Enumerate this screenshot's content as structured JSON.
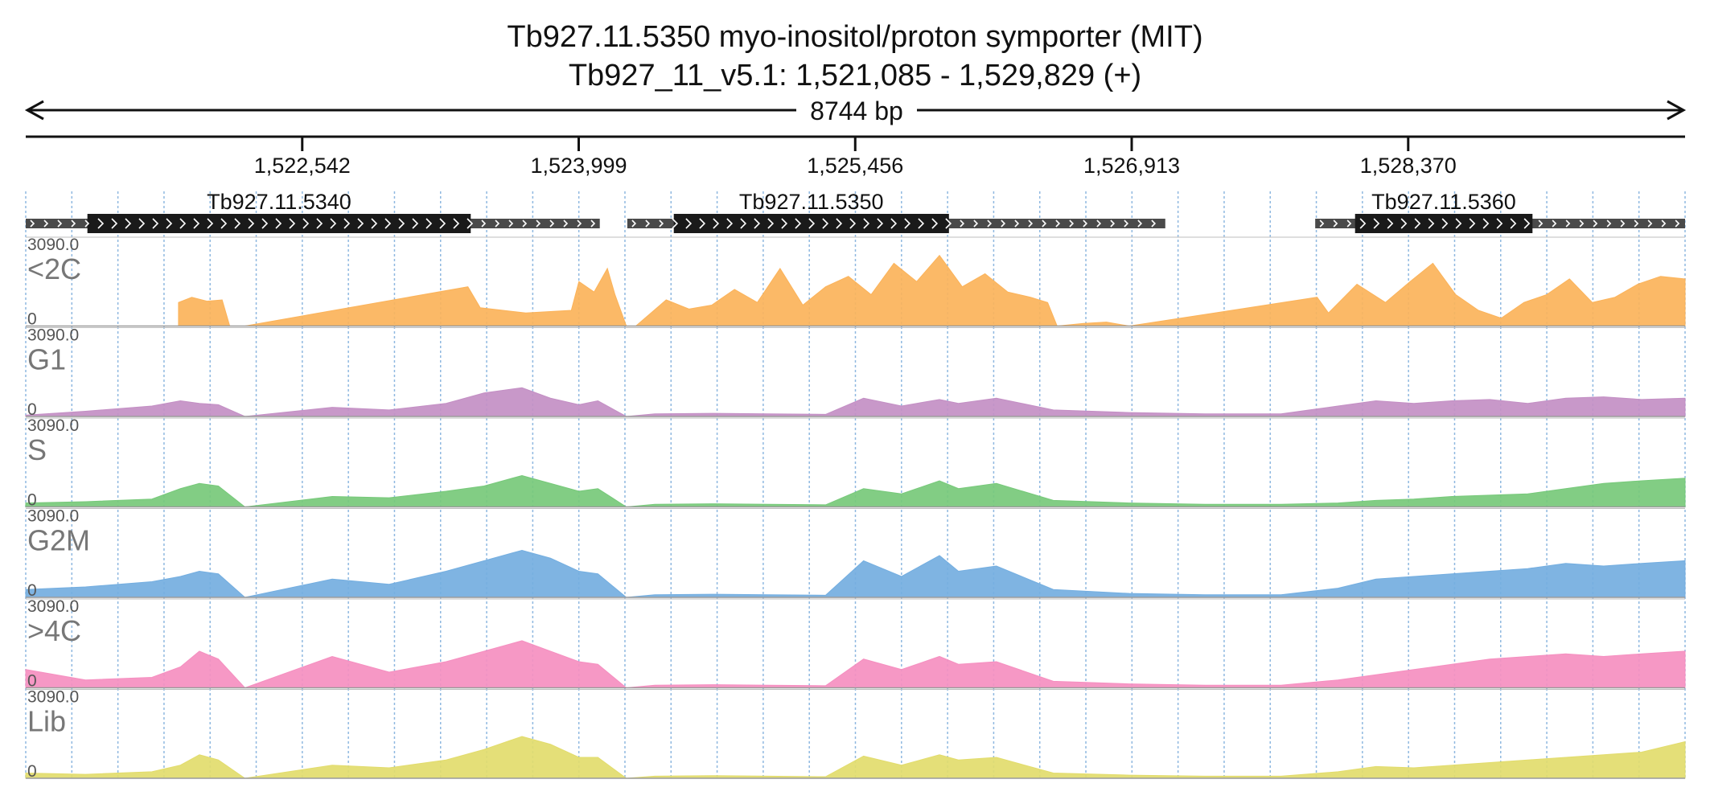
{
  "header": {
    "title": "Tb927.11.5350  myo-inositol/proton symporter (MIT)",
    "subtitle": "Tb927_11_v5.1: 1,521,085 - 1,529,829 (+)",
    "span_label": "8744 bp"
  },
  "colors": {
    "<2C": "#fbb35a",
    "G1": "#c38fc4",
    "S": "#77c97a",
    "G2M": "#74aee0",
    ">4C": "#f58fc0",
    "Lib": "#e2dc6c",
    "gene_body": "#1a1a1a",
    "gene_utr": "#4a4a4a",
    "gridline": "#8fb8e0"
  },
  "chart_data": {
    "type": "area",
    "x_range": [
      1521085,
      1529829
    ],
    "x_ticks": [
      {
        "pos": 1522542,
        "label": "1,522,542"
      },
      {
        "pos": 1523999,
        "label": "1,523,999"
      },
      {
        "pos": 1525456,
        "label": "1,525,456"
      },
      {
        "pos": 1526913,
        "label": "1,526,913"
      },
      {
        "pos": 1528370,
        "label": "1,528,370"
      }
    ],
    "genes": [
      {
        "name": "Tb927.11.5340",
        "start": 1521085,
        "end": 1524110,
        "cds_start": 1521410,
        "cds_end": 1523430
      },
      {
        "name": "Tb927.11.5350",
        "start": 1524255,
        "end": 1527090,
        "cds_start": 1524500,
        "cds_end": 1525950
      },
      {
        "name": "Tb927.11.5360",
        "start": 1527880,
        "end": 1529829,
        "cds_start": 1528090,
        "cds_end": 1529025
      }
    ],
    "tracks": [
      {
        "name": "<2C",
        "ymax_label": "3090.0",
        "ymin_label": "0",
        "ylim": [
          0,
          3090
        ],
        "x": [
          1521890,
          1521960,
          1522040,
          1522120,
          1522160,
          1522240,
          1523415,
          1523480,
          1523600,
          1523720,
          1523840,
          1523960,
          1524000,
          1524080,
          1524150,
          1524190,
          1524250,
          1524300,
          1524460,
          1524580,
          1524700,
          1524820,
          1524940,
          1525060,
          1525180,
          1525300,
          1525420,
          1525540,
          1525660,
          1525780,
          1525900,
          1526020,
          1526140,
          1526260,
          1526380,
          1526470,
          1526520,
          1526660,
          1526780,
          1526900,
          1527890,
          1527950,
          1528100,
          1528250,
          1528380,
          1528500,
          1528620,
          1528740,
          1528860,
          1528980,
          1529100,
          1529220,
          1529340,
          1529460,
          1529580,
          1529700,
          1529829
        ],
        "values": [
          900,
          1100,
          950,
          1000,
          0,
          0,
          1500,
          700,
          600,
          500,
          550,
          600,
          1700,
          1300,
          2200,
          1200,
          0,
          0,
          1000,
          650,
          800,
          1400,
          900,
          2200,
          800,
          1500,
          1900,
          1200,
          2400,
          1700,
          2700,
          1500,
          2000,
          1300,
          1100,
          900,
          0,
          100,
          150,
          0,
          1100,
          500,
          1600,
          900,
          1700,
          2400,
          1200,
          600,
          300,
          900,
          1200,
          1800,
          900,
          1100,
          1600,
          1900,
          1800
        ]
      },
      {
        "name": "G1",
        "ymax_label": "3090.0",
        "ymin_label": "0",
        "ylim": [
          0,
          3090
        ],
        "x": [
          1521085,
          1521400,
          1521750,
          1521900,
          1522000,
          1522100,
          1522240,
          1522700,
          1523000,
          1523300,
          1523500,
          1523700,
          1523850,
          1524000,
          1524100,
          1524250,
          1524400,
          1524700,
          1525000,
          1525300,
          1525500,
          1525700,
          1525900,
          1526000,
          1526200,
          1526500,
          1526900,
          1527300,
          1527700,
          1528000,
          1528200,
          1528400,
          1528600,
          1528800,
          1529000,
          1529200,
          1529400,
          1529600,
          1529829
        ],
        "values": [
          50,
          200,
          400,
          600,
          500,
          450,
          0,
          350,
          250,
          500,
          900,
          1100,
          700,
          450,
          600,
          0,
          100,
          120,
          100,
          80,
          700,
          400,
          650,
          500,
          700,
          250,
          150,
          100,
          100,
          400,
          600,
          500,
          600,
          650,
          500,
          700,
          750,
          650,
          700
        ]
      },
      {
        "name": "S",
        "ymax_label": "3090.0",
        "ymin_label": "0",
        "ylim": [
          0,
          3090
        ],
        "x": [
          1521085,
          1521400,
          1521750,
          1521900,
          1522000,
          1522100,
          1522240,
          1522700,
          1523000,
          1523300,
          1523500,
          1523700,
          1523850,
          1524000,
          1524100,
          1524250,
          1524400,
          1524700,
          1525000,
          1525300,
          1525500,
          1525700,
          1525900,
          1526000,
          1526200,
          1526500,
          1526900,
          1527300,
          1527700,
          1528000,
          1528200,
          1528400,
          1528600,
          1528800,
          1529000,
          1529200,
          1529400,
          1529600,
          1529829
        ],
        "values": [
          150,
          200,
          300,
          700,
          900,
          800,
          0,
          400,
          350,
          600,
          800,
          1200,
          900,
          600,
          700,
          0,
          100,
          120,
          100,
          80,
          700,
          500,
          1000,
          700,
          900,
          250,
          150,
          100,
          100,
          150,
          250,
          300,
          400,
          450,
          500,
          700,
          900,
          1000,
          1100
        ]
      },
      {
        "name": "G2M",
        "ymax_label": "3090.0",
        "ymin_label": "0",
        "ylim": [
          0,
          3090
        ],
        "x": [
          1521085,
          1521400,
          1521750,
          1521900,
          1522000,
          1522100,
          1522240,
          1522700,
          1523000,
          1523300,
          1523500,
          1523700,
          1523850,
          1524000,
          1524100,
          1524250,
          1524400,
          1524700,
          1525000,
          1525300,
          1525500,
          1525700,
          1525900,
          1526000,
          1526200,
          1526500,
          1526900,
          1527300,
          1527700,
          1528000,
          1528200,
          1528400,
          1528600,
          1528800,
          1529000,
          1529200,
          1529400,
          1529600,
          1529829
        ],
        "values": [
          300,
          400,
          600,
          800,
          1000,
          900,
          0,
          700,
          500,
          1000,
          1400,
          1800,
          1500,
          1000,
          900,
          0,
          100,
          120,
          100,
          80,
          1400,
          800,
          1600,
          1000,
          1200,
          300,
          150,
          100,
          100,
          350,
          700,
          800,
          900,
          1000,
          1100,
          1300,
          1200,
          1300,
          1400
        ]
      },
      {
        "name": ">4C",
        "ymax_label": "3090.0",
        "ymin_label": "0",
        "ylim": [
          0,
          3090
        ],
        "x": [
          1521085,
          1521400,
          1521750,
          1521900,
          1522000,
          1522100,
          1522240,
          1522700,
          1523000,
          1523300,
          1523500,
          1523700,
          1523850,
          1524000,
          1524100,
          1524250,
          1524400,
          1524700,
          1525000,
          1525300,
          1525500,
          1525700,
          1525900,
          1526000,
          1526200,
          1526500,
          1526900,
          1527300,
          1527700,
          1528000,
          1528200,
          1528400,
          1528600,
          1528800,
          1529000,
          1529200,
          1529400,
          1529600,
          1529829
        ],
        "values": [
          700,
          300,
          400,
          800,
          1400,
          1100,
          0,
          1200,
          600,
          1000,
          1400,
          1800,
          1400,
          1000,
          900,
          0,
          100,
          120,
          100,
          80,
          1100,
          700,
          1200,
          900,
          1000,
          250,
          150,
          100,
          100,
          300,
          500,
          700,
          900,
          1100,
          1200,
          1300,
          1200,
          1300,
          1400
        ]
      },
      {
        "name": "Lib",
        "ymax_label": "3090.0",
        "ymin_label": "0",
        "ylim": [
          0,
          3090
        ],
        "x": [
          1521085,
          1521400,
          1521750,
          1521900,
          1522000,
          1522100,
          1522240,
          1522700,
          1523000,
          1523300,
          1523500,
          1523700,
          1523850,
          1524000,
          1524100,
          1524250,
          1524400,
          1524700,
          1525000,
          1525300,
          1525500,
          1525700,
          1525900,
          1526000,
          1526200,
          1526500,
          1526900,
          1527300,
          1527700,
          1528000,
          1528200,
          1528400,
          1528600,
          1528800,
          1529000,
          1529200,
          1529400,
          1529600,
          1529829
        ],
        "values": [
          200,
          150,
          250,
          500,
          900,
          700,
          0,
          500,
          400,
          700,
          1100,
          1600,
          1300,
          800,
          800,
          0,
          80,
          100,
          80,
          60,
          850,
          500,
          900,
          700,
          800,
          200,
          120,
          80,
          80,
          250,
          450,
          400,
          500,
          600,
          700,
          800,
          900,
          1000,
          1400
        ]
      }
    ]
  }
}
